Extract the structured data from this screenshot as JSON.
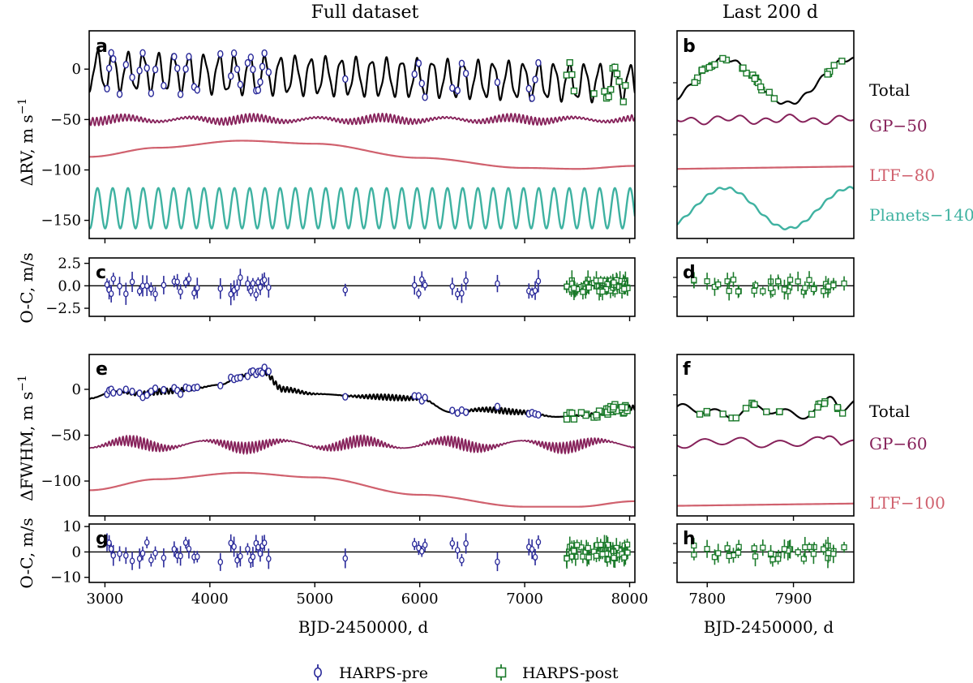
{
  "colors": {
    "total": "#000000",
    "gp": "#86215a",
    "ltf": "#d0616e",
    "planets": "#3fb2a1",
    "harps_pre": "#2a2a9a",
    "harps_post": "#1a7a2a"
  },
  "columns": {
    "left_title": "Full dataset",
    "right_title": "Last 200 d"
  },
  "legend": {
    "pre_label": "HARPS-pre",
    "post_label": "HARPS-post"
  },
  "chart_data": [
    {
      "panel": "a",
      "type": "line",
      "title": "Full dataset",
      "ylabel": "ΔRV, m s⁻¹",
      "xlim": [
        2850,
        8050
      ],
      "ylim": [
        -168,
        38
      ],
      "yticks": [
        0,
        -50,
        -100,
        -150
      ],
      "xticks": [
        3000,
        4000,
        5000,
        6000,
        7000,
        8000
      ],
      "series": [
        {
          "name": "Total",
          "kind": "sinusoid",
          "period": 145,
          "amplitude_start": 18,
          "amplitude_end": 17,
          "offset_start": -2,
          "offset_end": -14,
          "phase": 0.3
        },
        {
          "name": "GP",
          "kind": "noise",
          "offset": -50,
          "amplitude": 4
        },
        {
          "name": "LTF",
          "kind": "curve",
          "x": [
            2850,
            3500,
            4300,
            5000,
            6000,
            7000,
            7500,
            8050
          ],
          "values": [
            -87,
            -78,
            -71,
            -74,
            -88,
            -98,
            -99,
            -96
          ]
        },
        {
          "name": "Planets",
          "kind": "sinusoid",
          "period": 145,
          "amplitude": 20,
          "offset": -138,
          "phase": 0.3
        }
      ],
      "points": {
        "harps_pre_x": [
          3020,
          3040,
          3060,
          3080,
          3140,
          3200,
          3260,
          3330,
          3360,
          3400,
          3440,
          3480,
          3560,
          3660,
          3690,
          3720,
          3770,
          3800,
          3850,
          3880,
          4100,
          4200,
          4230,
          4260,
          4290,
          4360,
          4390,
          4410,
          4440,
          4460,
          4480,
          4500,
          4520,
          4560,
          5290,
          5950,
          5990,
          6020,
          6050,
          6310,
          6360,
          6400,
          6440,
          6740,
          7040,
          7070,
          7100,
          7130
        ],
        "harps_post_x": [
          7400,
          7430,
          7450,
          7470,
          7660,
          7760,
          7780,
          7800,
          7820,
          7840,
          7860,
          7880,
          7900,
          7940,
          7960
        ]
      }
    },
    {
      "panel": "b",
      "type": "line",
      "title": "Last 200 d",
      "xlim": [
        7765,
        7970
      ],
      "ylim": [
        -168,
        38
      ],
      "series_labels": [
        "Total",
        "GP−50",
        "LTF−80",
        "Planets−140"
      ]
    },
    {
      "panel": "c",
      "type": "scatter",
      "ylabel": "O-C, m/s",
      "xlim": [
        2850,
        8050
      ],
      "ylim": [
        -3.4,
        3.1
      ],
      "yticks": [
        2.5,
        0.0,
        -2.5
      ],
      "ytick_labels": [
        "2.5",
        "0.0",
        "−2.5"
      ]
    },
    {
      "panel": "d",
      "type": "scatter",
      "xlim": [
        7765,
        7970
      ],
      "ylim": [
        -3.4,
        3.1
      ]
    },
    {
      "panel": "e",
      "type": "line",
      "ylabel": "ΔFWHM, m s⁻¹",
      "xlim": [
        2850,
        8050
      ],
      "ylim": [
        -138,
        38
      ],
      "yticks": [
        0,
        -50,
        -100
      ],
      "series": [
        {
          "name": "Total",
          "kind": "curve",
          "x": [
            2850,
            3100,
            3300,
            3600,
            3800,
            4100,
            4300,
            4500,
            4700,
            5000,
            5500,
            6000,
            6300,
            6600,
            7000,
            7300,
            7600,
            7900,
            8050
          ],
          "values": [
            -10,
            -2,
            -5,
            -2,
            0,
            5,
            15,
            20,
            0,
            -5,
            -8,
            -10,
            -25,
            -22,
            -25,
            -30,
            -28,
            -20,
            -20
          ]
        },
        {
          "name": "GP",
          "kind": "noise",
          "offset": -60,
          "amplitude": 6
        },
        {
          "name": "LTF",
          "kind": "curve",
          "x": [
            2850,
            3500,
            4300,
            5000,
            6000,
            7000,
            7500,
            8050
          ],
          "values": [
            -110,
            -98,
            -91,
            -96,
            -115,
            -128,
            -128,
            -122
          ]
        }
      ]
    },
    {
      "panel": "f",
      "type": "line",
      "xlim": [
        7765,
        7970
      ],
      "ylim": [
        -138,
        38
      ],
      "series_labels": [
        "Total",
        "GP−60",
        "LTF−100"
      ]
    },
    {
      "panel": "g",
      "type": "scatter",
      "ylabel": "O-C, m/s",
      "xlim": [
        2850,
        8050
      ],
      "ylim": [
        -12,
        11
      ],
      "yticks": [
        10,
        0,
        -10
      ],
      "ytick_labels": [
        "10",
        "0",
        "−10"
      ]
    },
    {
      "panel": "h",
      "type": "scatter",
      "xlim": [
        7765,
        7970
      ],
      "ylim": [
        -12,
        11
      ]
    }
  ],
  "axes": {
    "left_xlabel": "BJD-2450000, d",
    "right_xlabel": "BJD-2450000, d",
    "left_xtick_labels": [
      "3000",
      "4000",
      "5000",
      "6000",
      "7000",
      "8000"
    ],
    "right_xtick_labels": [
      "7800",
      "7900"
    ],
    "ylabel_rv": "ΔRV, m s",
    "ylabel_rv_exp": "−1",
    "ylabel_oc": "O-C, m/s",
    "ylabel_fwhm": "ΔFWHM, m s",
    "ylabel_fwhm_exp": "−1",
    "yticks_a": [
      "0",
      "−50",
      "−100",
      "−150"
    ],
    "yticks_c": [
      "2.5",
      "0.0",
      "−2.5"
    ],
    "yticks_e": [
      "0",
      "−50",
      "−100"
    ],
    "yticks_g": [
      "10",
      "0",
      "−10"
    ]
  },
  "panel_letters": {
    "a": "a",
    "b": "b",
    "c": "c",
    "d": "d",
    "e": "e",
    "f": "f",
    "g": "g",
    "h": "h"
  },
  "right_labels": {
    "b_total": "Total",
    "b_gp": "GP−50",
    "b_ltf": "LTF−80",
    "b_planets": "Planets−140",
    "f_total": "Total",
    "f_gp": "GP−60",
    "f_ltf": "LTF−100"
  }
}
